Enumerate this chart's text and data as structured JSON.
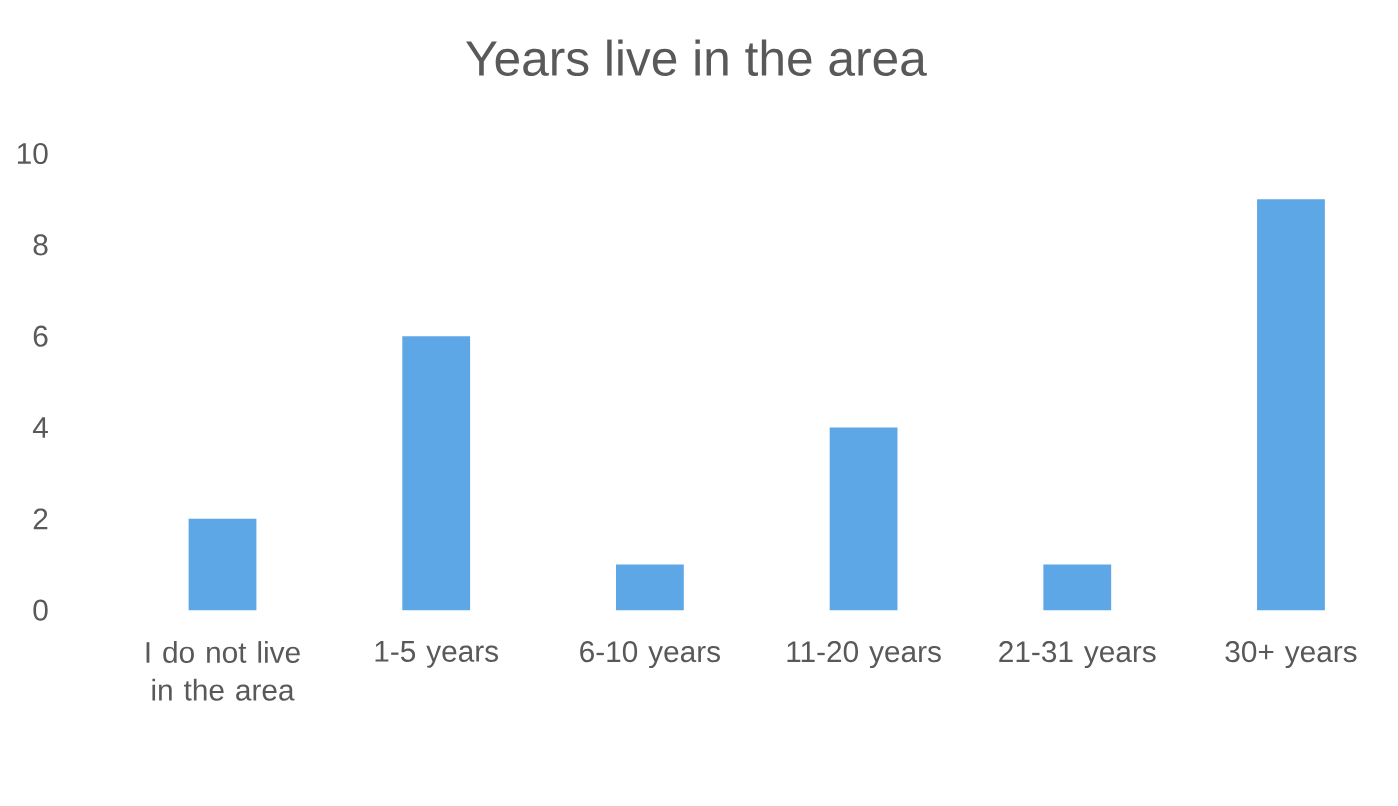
{
  "chart_data": {
    "type": "bar",
    "title": "Years live in the area",
    "categories": [
      "I do not live in the area",
      "1-5 years",
      "6-10 years",
      "11-20 years",
      "21-31 years",
      "30+ years"
    ],
    "values": [
      2,
      6,
      1,
      4,
      1,
      9
    ],
    "color": "#5ea7e6",
    "ylim": [
      0,
      10
    ],
    "yticks": [
      0,
      2,
      4,
      6,
      8,
      10
    ]
  }
}
